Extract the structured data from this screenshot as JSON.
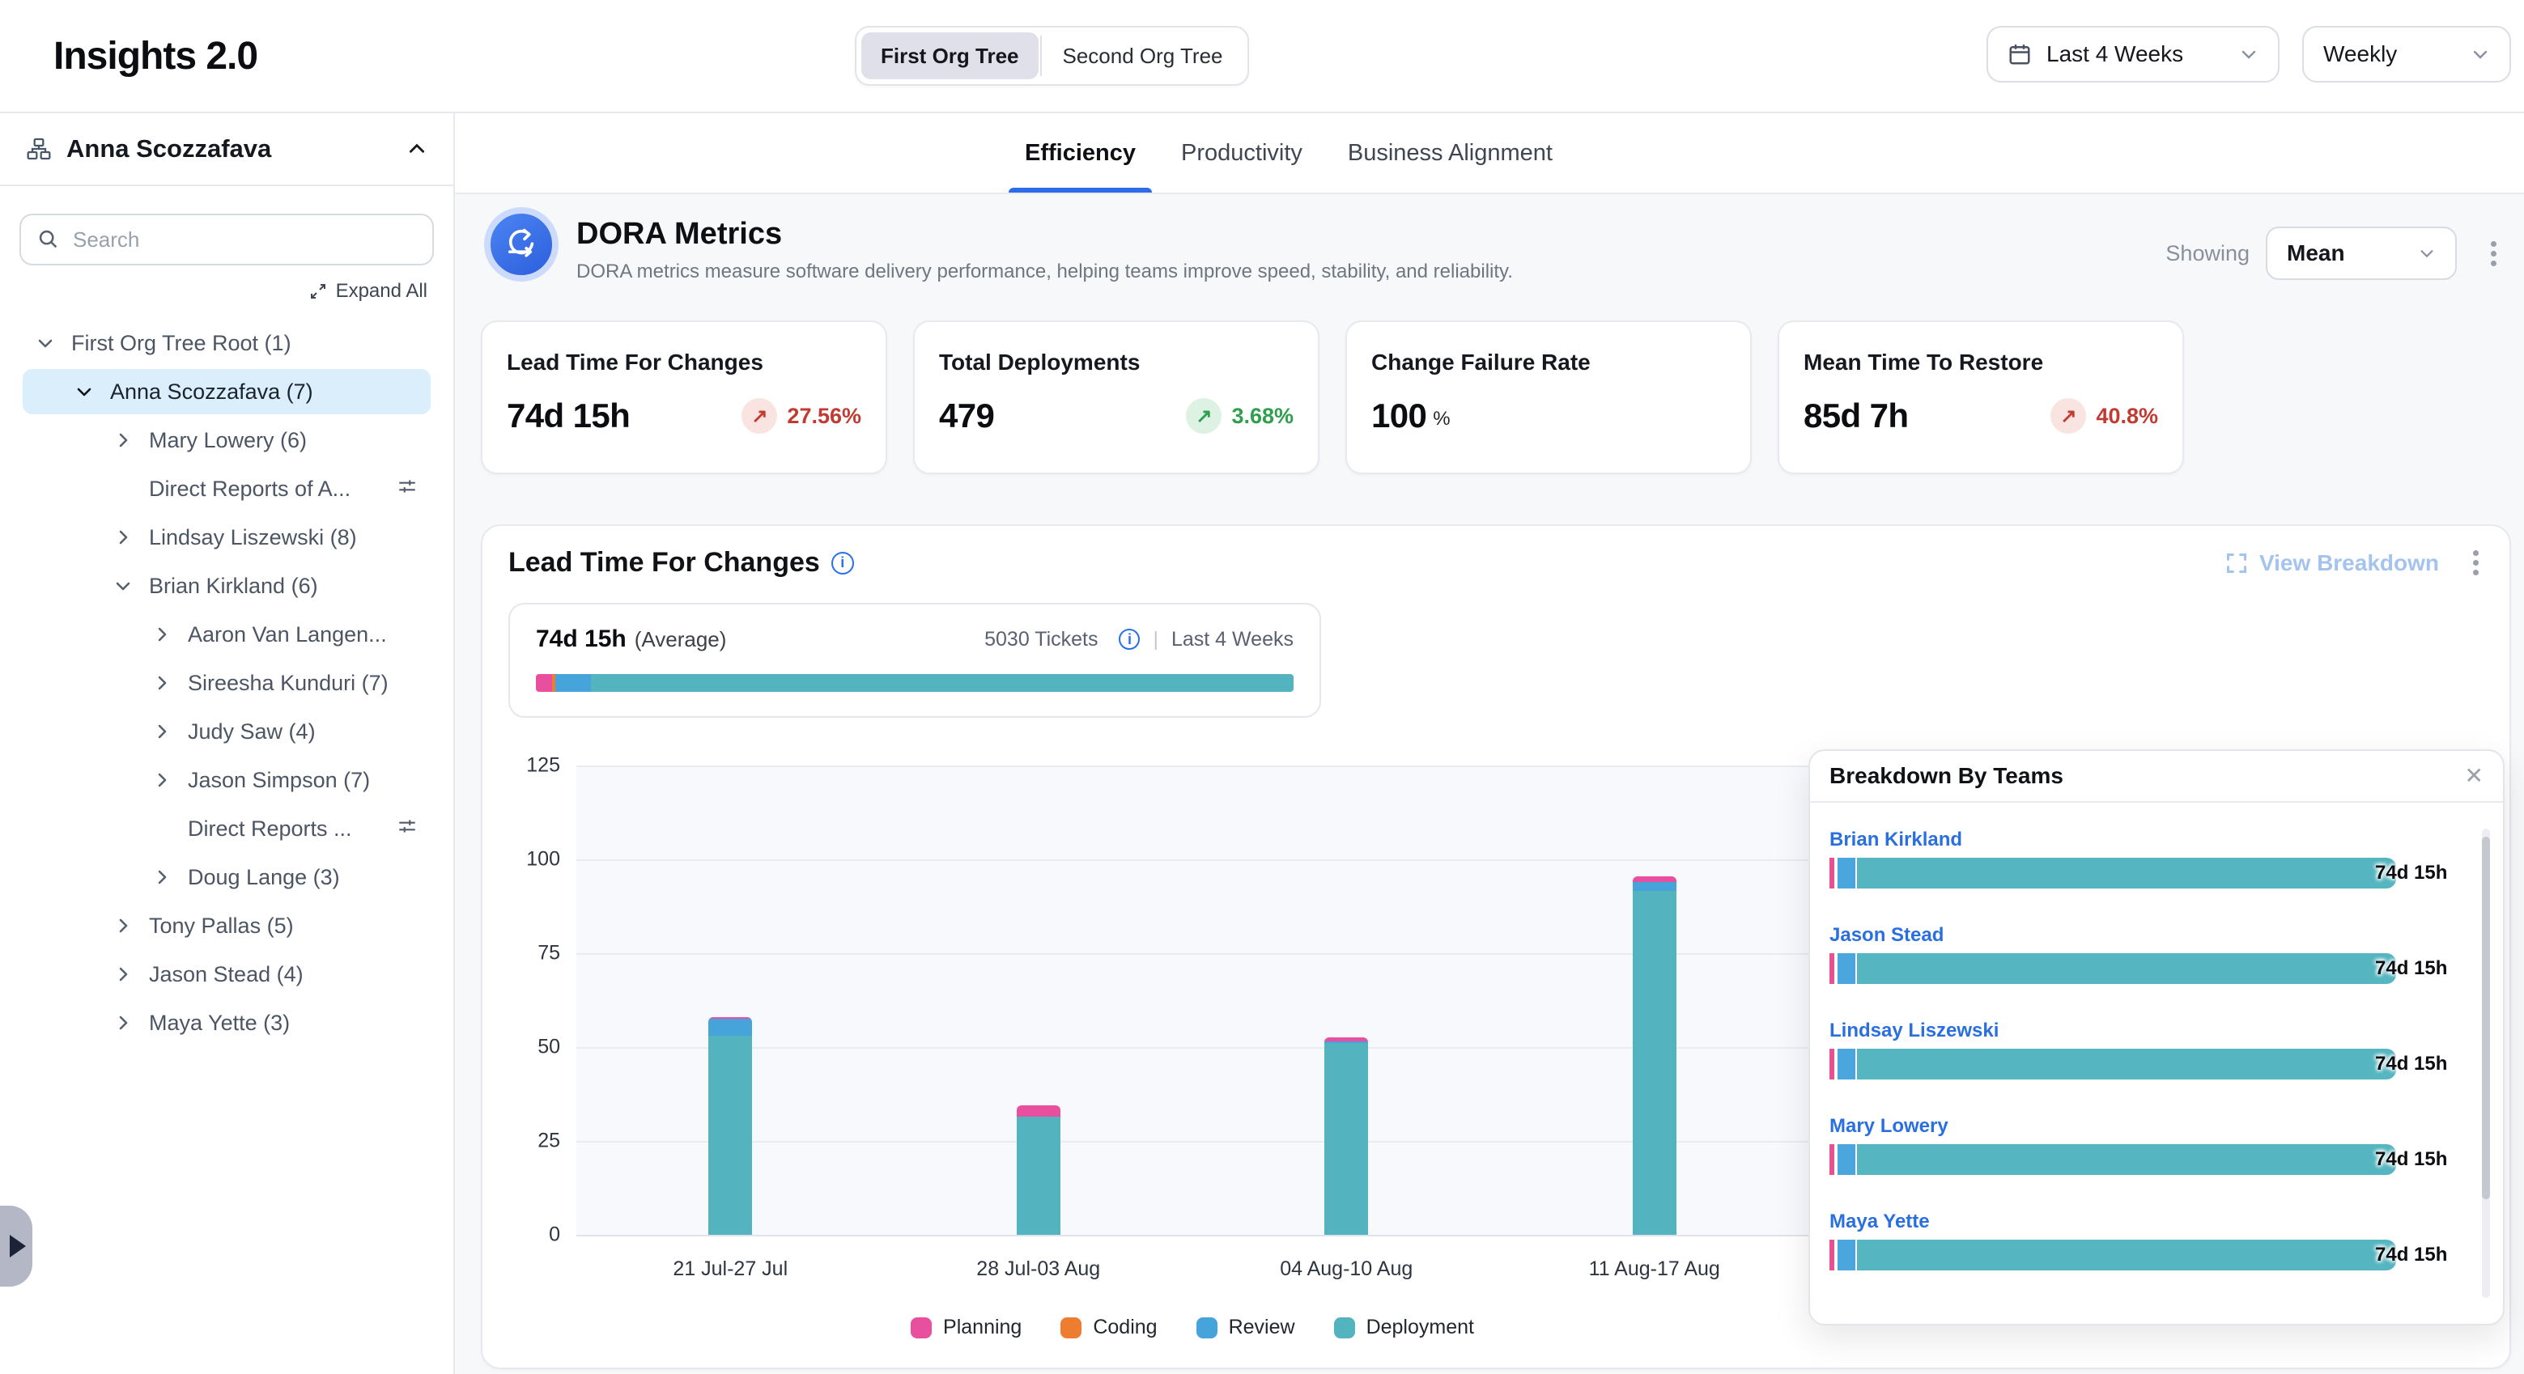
{
  "header": {
    "app_title": "Insights 2.0",
    "org_toggle": {
      "options": [
        "First Org Tree",
        "Second Org Tree"
      ],
      "selected": "First Org Tree"
    },
    "date_range": "Last 4 Weeks",
    "granularity": "Weekly"
  },
  "sidebar": {
    "user": "Anna Scozzafava",
    "search_placeholder": "Search",
    "expand_all": "Expand All",
    "tree": [
      {
        "label": "First Org Tree Root (1)",
        "level": 0,
        "chevron": "down",
        "selected": false,
        "filter_icon": false
      },
      {
        "label": "Anna Scozzafava (7)",
        "level": 1,
        "chevron": "down",
        "selected": true,
        "filter_icon": false
      },
      {
        "label": "Mary Lowery (6)",
        "level": 2,
        "chevron": "right",
        "selected": false,
        "filter_icon": false
      },
      {
        "label": "Direct Reports of A...",
        "level": 2,
        "chevron": null,
        "selected": false,
        "filter_icon": true
      },
      {
        "label": "Lindsay Liszewski (8)",
        "level": 2,
        "chevron": "right",
        "selected": false,
        "filter_icon": false
      },
      {
        "label": "Brian Kirkland (6)",
        "level": 2,
        "chevron": "down",
        "selected": false,
        "filter_icon": false
      },
      {
        "label": "Aaron Van Langen...",
        "level": 3,
        "chevron": "right",
        "selected": false,
        "filter_icon": false
      },
      {
        "label": "Sireesha Kunduri (7)",
        "level": 3,
        "chevron": "right",
        "selected": false,
        "filter_icon": false
      },
      {
        "label": "Judy Saw (4)",
        "level": 3,
        "chevron": "right",
        "selected": false,
        "filter_icon": false
      },
      {
        "label": "Jason Simpson (7)",
        "level": 3,
        "chevron": "right",
        "selected": false,
        "filter_icon": false
      },
      {
        "label": "Direct Reports ...",
        "level": 3,
        "chevron": null,
        "selected": false,
        "filter_icon": true
      },
      {
        "label": "Doug Lange (3)",
        "level": 3,
        "chevron": "right",
        "selected": false,
        "filter_icon": false
      },
      {
        "label": "Tony Pallas (5)",
        "level": 2,
        "chevron": "right",
        "selected": false,
        "filter_icon": false
      },
      {
        "label": "Jason Stead (4)",
        "level": 2,
        "chevron": "right",
        "selected": false,
        "filter_icon": false
      },
      {
        "label": "Maya Yette (3)",
        "level": 2,
        "chevron": "right",
        "selected": false,
        "filter_icon": false
      }
    ]
  },
  "tabs": {
    "items": [
      "Efficiency",
      "Productivity",
      "Business Alignment"
    ],
    "active": "Efficiency"
  },
  "dora": {
    "title": "DORA Metrics",
    "subtitle": "DORA metrics measure software delivery performance, helping teams improve speed, stability, and reliability.",
    "showing_label": "Showing",
    "showing_value": "Mean"
  },
  "metrics": {
    "cards": [
      {
        "title": "Lead Time For Changes",
        "value": "74d 15h",
        "unit": "",
        "change": "27.56%",
        "direction": "up",
        "tone": "negative"
      },
      {
        "title": "Total Deployments",
        "value": "479",
        "unit": "",
        "change": "3.68%",
        "direction": "up",
        "tone": "positive"
      },
      {
        "title": "Change Failure Rate",
        "value": "100",
        "unit": "%",
        "change": "",
        "direction": "",
        "tone": ""
      },
      {
        "title": "Mean Time To Restore",
        "value": "85d 7h",
        "unit": "",
        "change": "40.8%",
        "direction": "up",
        "tone": "negative"
      }
    ]
  },
  "lead_time": {
    "title": "Lead Time For Changes",
    "view_breakdown": "View Breakdown",
    "average_value": "74d 15h",
    "average_suffix": "(Average)",
    "tickets": "5030 Tickets",
    "range_label": "Last 4 Weeks",
    "average_bar_pct": [
      {
        "name": "Planning",
        "pct": 2.1
      },
      {
        "name": "Coding",
        "pct": 0.5
      },
      {
        "name": "Review",
        "pct": 4.7
      },
      {
        "name": "Deployment",
        "pct": 92.7
      }
    ]
  },
  "chart_data": {
    "type": "bar",
    "stacked": true,
    "title": "Lead Time For Changes",
    "categories": [
      "21 Jul-27 Jul",
      "28 Jul-03 Aug",
      "04 Aug-10 Aug",
      "11 Aug-17 Aug"
    ],
    "series": [
      {
        "name": "Planning",
        "color": "#e84f9e",
        "values": [
          0.5,
          3,
          1,
          1.5
        ]
      },
      {
        "name": "Coding",
        "color": "#ed7d31",
        "values": [
          0,
          0,
          0,
          0
        ]
      },
      {
        "name": "Review",
        "color": "#47a4db",
        "values": [
          4.5,
          0,
          0.5,
          2.5
        ]
      },
      {
        "name": "Deployment",
        "color": "#53b3be",
        "values": [
          53,
          31.5,
          51,
          91.5
        ]
      }
    ],
    "totals": [
      58,
      34.5,
      52.5,
      95.5
    ],
    "ylim": [
      0,
      125
    ],
    "yticks": [
      0,
      25,
      50,
      75,
      100,
      125
    ],
    "grid": true,
    "legend_position": "bottom"
  },
  "breakdown": {
    "title": "Breakdown By Teams",
    "teams": [
      {
        "name": "Brian Kirkland",
        "value": "74d 15h"
      },
      {
        "name": "Jason Stead",
        "value": "74d 15h"
      },
      {
        "name": "Lindsay Liszewski",
        "value": "74d 15h"
      },
      {
        "name": "Mary Lowery",
        "value": "74d 15h"
      },
      {
        "name": "Maya Yette",
        "value": "74d 15h"
      }
    ]
  },
  "colors": {
    "planning": "#e84f9e",
    "coding": "#ed7d31",
    "review": "#47a4db",
    "deployment": "#53b3be",
    "accent_blue": "#2e6be6",
    "link_blue": "#2a6fe0",
    "negative": "#c23b33",
    "positive": "#2f9e4f",
    "breakdown_pink": "#e8508f",
    "breakdown_blue": "#4aa6dc",
    "breakdown_teal": "#55b6c1"
  }
}
